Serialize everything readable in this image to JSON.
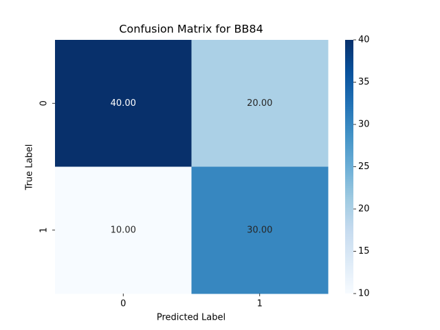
{
  "chart_data": {
    "type": "heatmap",
    "title": "Confusion Matrix for BB84",
    "x_label": "Predicted Label",
    "y_label": "True Label",
    "x_categories": [
      "0",
      "1"
    ],
    "y_categories": [
      "0",
      "1"
    ],
    "values": [
      [
        40,
        20
      ],
      [
        10,
        30
      ]
    ],
    "value_labels": [
      [
        "40.00",
        "20.00"
      ],
      [
        "10.00",
        "30.00"
      ]
    ],
    "colormap": "Blues",
    "clim": [
      10,
      40
    ],
    "cticks": [
      10,
      15,
      20,
      25,
      30,
      35,
      40
    ]
  }
}
